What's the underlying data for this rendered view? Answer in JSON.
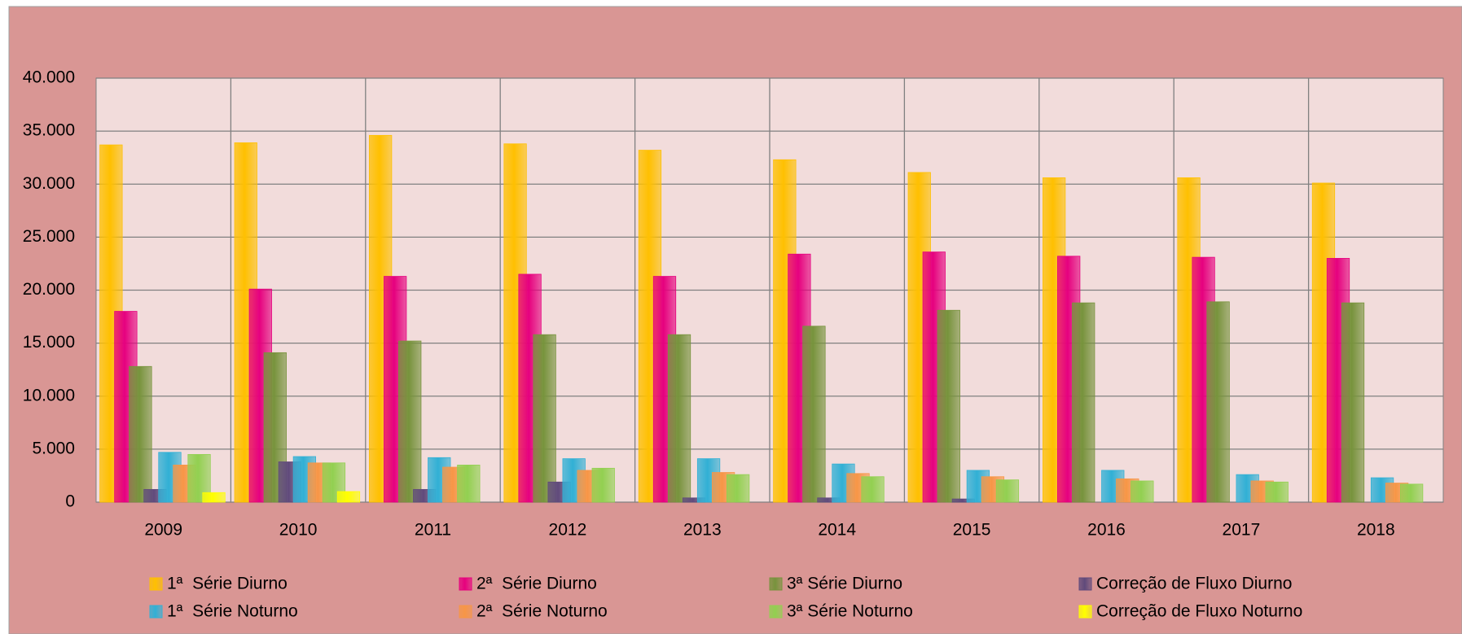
{
  "chart_data": {
    "type": "bar",
    "categories": [
      "2009",
      "2010",
      "2011",
      "2012",
      "2013",
      "2014",
      "2015",
      "2016",
      "2017",
      "2018"
    ],
    "series": [
      {
        "name": "1ª  Série Diurno",
        "color": "#ffc000",
        "values": [
          33700,
          33900,
          34600,
          33800,
          33200,
          32300,
          31100,
          30600,
          30600,
          30100
        ]
      },
      {
        "name": "2ª  Série Diurno",
        "color": "#e6007e",
        "values": [
          18000,
          20100,
          21300,
          21500,
          21300,
          23400,
          23600,
          23200,
          23100,
          23000
        ]
      },
      {
        "name": "3ª Série Diurno",
        "color": "#77933c",
        "values": [
          12800,
          14100,
          15200,
          15800,
          15800,
          16600,
          18100,
          18800,
          18900,
          18800
        ]
      },
      {
        "name": "Correção de Fluxo Diurno",
        "color": "#604a7b",
        "values": [
          1200,
          3800,
          1200,
          1900,
          400,
          400,
          300,
          0,
          0,
          0
        ]
      },
      {
        "name": "1ª  Série Noturno",
        "color": "#31b0d5",
        "values": [
          4700,
          4300,
          4200,
          4100,
          4100,
          3600,
          3000,
          3000,
          2600,
          2300
        ]
      },
      {
        "name": "2ª  Série Noturno",
        "color": "#f79646",
        "values": [
          3500,
          3700,
          3300,
          3000,
          2800,
          2700,
          2400,
          2200,
          2000,
          1800
        ]
      },
      {
        "name": "3ª Série Noturno",
        "color": "#92d050",
        "values": [
          4500,
          3700,
          3500,
          3200,
          2600,
          2400,
          2100,
          2000,
          1900,
          1700
        ]
      },
      {
        "name": "Correção de Fluxo Noturno",
        "color": "#ffff00",
        "values": [
          900,
          1000,
          0,
          0,
          0,
          0,
          0,
          0,
          0,
          0
        ]
      }
    ],
    "ylim": [
      0,
      40000
    ],
    "yticks": [
      0,
      {
        "value": 5000,
        "label": "5.000"
      },
      {
        "value": 10000,
        "label": "10.000"
      },
      {
        "value": 15000,
        "label": "15.000"
      },
      {
        "value": 20000,
        "label": "20.000"
      },
      {
        "value": 25000,
        "label": "25.000"
      },
      {
        "value": 30000,
        "label": "30.000"
      },
      {
        "value": 35000,
        "label": "35.000"
      },
      {
        "value": 40000,
        "label": "40.000"
      }
    ],
    "grid": true,
    "legend": "bottom"
  }
}
